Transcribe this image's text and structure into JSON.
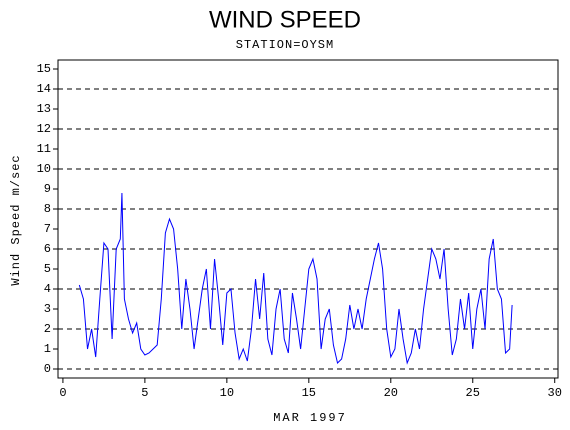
{
  "chart_data": {
    "type": "line",
    "title": "WIND SPEED",
    "subtitle": "STATION=OYSM",
    "x_label": "MAR 1997",
    "y_label": "Wind Speed m/sec",
    "xlim": [
      -0.3,
      30.2
    ],
    "ylim": [
      -0.45,
      15.45
    ],
    "xticks": [
      0,
      5,
      10,
      15,
      20,
      25,
      30
    ],
    "yticks": [
      0,
      1,
      2,
      3,
      4,
      5,
      6,
      7,
      8,
      9,
      10,
      11,
      12,
      13,
      14,
      15
    ],
    "grid_y": [
      0,
      2,
      4,
      6,
      8,
      10,
      12,
      14
    ],
    "series": [
      {
        "color": "#0000ff",
        "x": [
          1,
          1.25,
          1.5,
          1.75,
          2,
          2.25,
          2.5,
          2.75,
          3,
          3.25,
          3.5,
          3.6,
          3.75,
          4,
          4.25,
          4.5,
          4.75,
          5,
          5.25,
          5.5,
          5.75,
          6,
          6.25,
          6.5,
          6.75,
          7,
          7.25,
          7.5,
          7.75,
          8,
          8.25,
          8.5,
          8.75,
          9,
          9.25,
          9.5,
          9.75,
          10,
          10.25,
          10.5,
          10.75,
          11,
          11.25,
          11.5,
          11.75,
          12,
          12.25,
          12.5,
          12.75,
          13,
          13.25,
          13.5,
          13.75,
          14,
          14.25,
          14.5,
          14.75,
          15,
          15.25,
          15.5,
          15.75,
          16,
          16.25,
          16.5,
          16.75,
          17,
          17.25,
          17.5,
          17.75,
          18,
          18.25,
          18.5,
          18.75,
          19,
          19.25,
          19.5,
          19.75,
          20,
          20.25,
          20.5,
          20.75,
          21,
          21.25,
          21.5,
          21.75,
          22,
          22.25,
          22.5,
          22.75,
          23,
          23.25,
          23.5,
          23.75,
          24,
          24.25,
          24.5,
          24.75,
          25,
          25.25,
          25.5,
          25.75,
          26,
          26.25,
          26.5,
          26.75,
          27,
          27.25,
          27.4
        ],
        "values": [
          4.2,
          3.5,
          1.0,
          2.0,
          0.6,
          3.5,
          6.3,
          6.0,
          1.5,
          6.0,
          6.5,
          8.8,
          3.5,
          2.5,
          1.8,
          2.3,
          1.0,
          0.7,
          0.8,
          1.0,
          1.2,
          3.5,
          6.8,
          7.5,
          7.0,
          5.0,
          2.0,
          4.5,
          3.0,
          1.0,
          2.5,
          4.0,
          5.0,
          2.0,
          5.5,
          3.5,
          1.2,
          3.8,
          4.0,
          1.8,
          0.5,
          1.0,
          0.4,
          2.0,
          4.5,
          2.5,
          4.8,
          1.5,
          0.7,
          3.0,
          4.0,
          1.5,
          0.8,
          3.8,
          2.5,
          1.0,
          3.0,
          5.0,
          5.5,
          4.5,
          1.0,
          2.5,
          3.0,
          1.2,
          0.3,
          0.5,
          1.5,
          3.2,
          2.0,
          3.0,
          2.0,
          3.5,
          4.5,
          5.5,
          6.3,
          5.0,
          2.0,
          0.6,
          1.0,
          3.0,
          1.5,
          0.3,
          0.8,
          2.0,
          1.0,
          3.0,
          4.5,
          6.0,
          5.5,
          4.5,
          6.0,
          3.0,
          0.7,
          1.5,
          3.5,
          2.0,
          3.8,
          1.0,
          3.0,
          4.0,
          2.0,
          5.5,
          6.5,
          4.0,
          3.5,
          0.8,
          1.0,
          3.2
        ]
      }
    ]
  }
}
